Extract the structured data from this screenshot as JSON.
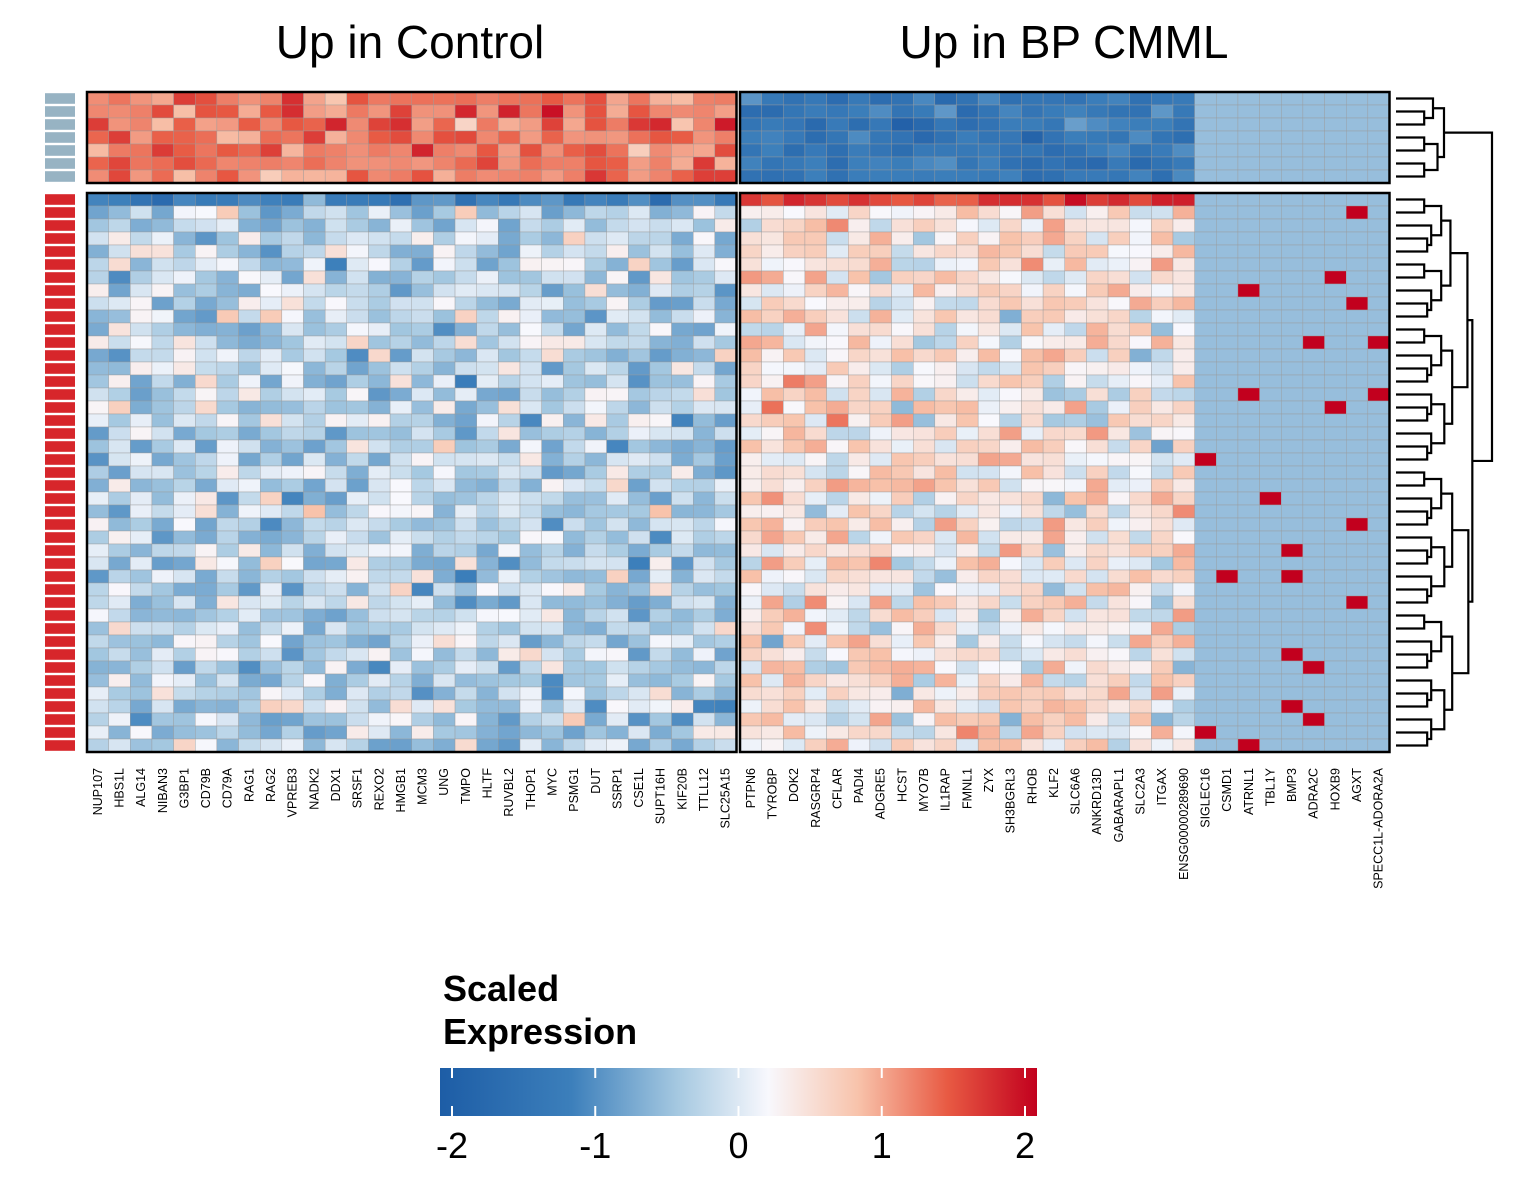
{
  "chart_data": {
    "type": "heatmap",
    "title": "",
    "panels": [
      {
        "title": "Up in Control",
        "genes": [
          "NUP107",
          "HBS1L",
          "ALG14",
          "NIBAN3",
          "G3BP1",
          "CD79B",
          "CD79A",
          "RAG1",
          "RAG2",
          "VPREB3",
          "NADK2",
          "DDX1",
          "SRSF1",
          "REXO2",
          "HMGB1",
          "MCM3",
          "UNG",
          "TMPO",
          "HLTF",
          "RUVBL2",
          "THOP1",
          "MYC",
          "PSMG1",
          "DUT",
          "SSRP1",
          "CSE1L",
          "SUPT16H",
          "KIF20B",
          "TTLL12",
          "SLC25A15"
        ]
      },
      {
        "title": "Up in BP CMML",
        "genes": [
          "PTPN6",
          "TYROBP",
          "DOK2",
          "RASGRP4",
          "CFLAR",
          "PADI4",
          "ADGRE5",
          "HCST",
          "MYO7B",
          "IL1RAP",
          "FMNL1",
          "ZYX",
          "SH3BGRL3",
          "RHOB",
          "KLF2",
          "SLC6A6",
          "ANKRD13D",
          "GABARAPL1",
          "SLC2A3",
          "ITGAX",
          "ENSG00000289690",
          "SIGLEC16",
          "CSMD1",
          "ATRNL1",
          "TBL1Y",
          "BMP3",
          "ADRA2C",
          "HOXB9",
          "AGXT",
          "SPECC1L-ADORA2A"
        ]
      }
    ],
    "sample_groups": [
      {
        "group": "Control",
        "color": "#97b3c3",
        "n_samples": 7
      },
      {
        "group": "BP CMML",
        "color": "#d7262b",
        "n_samples": 43
      }
    ],
    "row_dendrogram": true,
    "legend": {
      "title": "Scaled\nExpression",
      "title_lines": [
        "Scaled",
        "Expression"
      ],
      "ticks": [
        "-2",
        "-1",
        "0",
        "1",
        "2"
      ],
      "range": [
        -2,
        2
      ],
      "colors": [
        "#1f5fa8",
        "#4f8fc3",
        "#a8cbe2",
        "#f7f7fb",
        "#f8c8b2",
        "#ec6a4f",
        "#c4001f"
      ],
      "placement": "bottom"
    }
  }
}
